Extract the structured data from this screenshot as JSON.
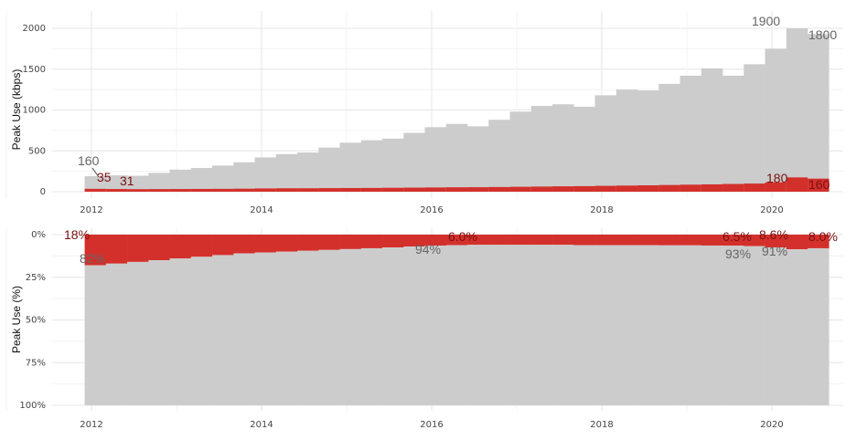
{
  "chart_data": [
    {
      "type": "area",
      "ylabel": "Peak Use (kbps)",
      "ylim": [
        0,
        2100
      ],
      "xlim": [
        2011.6,
        2020.85
      ],
      "grid": true,
      "yticks": [
        "0",
        "500",
        "1000",
        "1500",
        "2000"
      ],
      "xticks": [
        "2012",
        "2014",
        "2016",
        "2018",
        "2020"
      ],
      "x": [
        2011.92,
        2012.17,
        2012.42,
        2012.67,
        2012.92,
        2013.17,
        2013.42,
        2013.67,
        2013.92,
        2014.17,
        2014.42,
        2014.67,
        2014.92,
        2015.17,
        2015.42,
        2015.67,
        2015.92,
        2016.17,
        2016.42,
        2016.67,
        2016.92,
        2017.17,
        2017.42,
        2017.67,
        2017.92,
        2018.17,
        2018.42,
        2018.67,
        2018.92,
        2019.17,
        2019.42,
        2019.67,
        2019.92,
        2020.17,
        2020.42
      ],
      "series": [
        {
          "color": "#cccccc",
          "values": [
            190,
            200,
            195,
            230,
            270,
            290,
            320,
            360,
            420,
            460,
            480,
            540,
            600,
            630,
            650,
            720,
            790,
            830,
            800,
            880,
            980,
            1050,
            1070,
            1040,
            1180,
            1250,
            1240,
            1320,
            1420,
            1510,
            1420,
            1560,
            1750,
            2000,
            1930
          ]
        },
        {
          "color": "#d3302c",
          "values": [
            35,
            33,
            31,
            32,
            33,
            34,
            35,
            37,
            40,
            42,
            42,
            44,
            45,
            46,
            48,
            50,
            52,
            54,
            55,
            57,
            60,
            63,
            66,
            68,
            72,
            75,
            78,
            82,
            86,
            90,
            95,
            100,
            115,
            175,
            160
          ]
        }
      ],
      "annotations": {
        "a1": "160",
        "a2": "35",
        "a3": "31",
        "a4": "1900",
        "a5": "1800",
        "a6": "180",
        "a7": "160"
      }
    },
    {
      "type": "area",
      "ylabel": "Peak Use (%)",
      "ylim": [
        0,
        100
      ],
      "y_reversed": true,
      "grid": true,
      "yticks": [
        "0%",
        "25%",
        "50%",
        "75%",
        "100%"
      ],
      "xticks": [
        "2012",
        "2014",
        "2016",
        "2018",
        "2020"
      ],
      "series": [
        {
          "color": "#d3302c",
          "values": [
            18,
            17,
            16,
            15,
            14,
            13,
            12,
            11,
            10.5,
            10,
            9.5,
            9,
            8.5,
            8,
            7.5,
            7,
            6.5,
            6.2,
            6,
            6,
            6,
            6,
            6,
            6.2,
            6.2,
            6.2,
            6.2,
            6.3,
            6.3,
            6.4,
            6.5,
            6.8,
            7.5,
            8.6,
            8.0
          ]
        },
        {
          "color": "#cccccc",
          "values": "remainder to 100%"
        }
      ],
      "annotations": {
        "b1": "18%",
        "b2": "82%",
        "b3": "6.0%",
        "b4": "94%",
        "b5": "6.5%",
        "b6": "93%",
        "b7": "8.6%",
        "b8": "91%",
        "b9": "8.0%"
      }
    }
  ]
}
